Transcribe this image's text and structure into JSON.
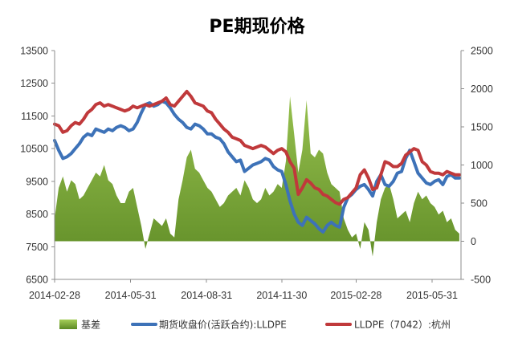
{
  "chart_data": {
    "type": "line",
    "title": "PE期现价格",
    "xlim": [
      "2014-02-28",
      "2015-07-05"
    ],
    "x_ticks": [
      "2014-02-28",
      "2014-05-31",
      "2014-08-31",
      "2014-11-30",
      "2015-02-28",
      "2015-05-31"
    ],
    "y_left": {
      "min": 6500,
      "max": 13500,
      "ticks": [
        "13500",
        "12500",
        "11500",
        "10500",
        "9500",
        "8500",
        "7500",
        "6500"
      ]
    },
    "y_right": {
      "min": -500,
      "max": 2500,
      "ticks": [
        "2500",
        "2000",
        "1500",
        "1000",
        "500",
        "0",
        "-500"
      ]
    },
    "grid": false,
    "legend": "bottom",
    "x": [
      "2014-02-28",
      "2014-03-05",
      "2014-03-10",
      "2014-03-15",
      "2014-03-20",
      "2014-03-25",
      "2014-03-30",
      "2014-04-04",
      "2014-04-09",
      "2014-04-14",
      "2014-04-19",
      "2014-04-24",
      "2014-04-29",
      "2014-05-04",
      "2014-05-09",
      "2014-05-14",
      "2014-05-19",
      "2014-05-24",
      "2014-05-29",
      "2014-06-03",
      "2014-06-08",
      "2014-06-13",
      "2014-06-18",
      "2014-06-23",
      "2014-06-28",
      "2014-07-03",
      "2014-07-08",
      "2014-07-13",
      "2014-07-18",
      "2014-07-23",
      "2014-07-28",
      "2014-08-02",
      "2014-08-07",
      "2014-08-12",
      "2014-08-17",
      "2014-08-22",
      "2014-08-27",
      "2014-09-01",
      "2014-09-06",
      "2014-09-11",
      "2014-09-16",
      "2014-09-21",
      "2014-09-26",
      "2014-10-01",
      "2014-10-06",
      "2014-10-11",
      "2014-10-16",
      "2014-10-21",
      "2014-10-26",
      "2014-10-31",
      "2014-11-05",
      "2014-11-10",
      "2014-11-15",
      "2014-11-20",
      "2014-11-25",
      "2014-11-30",
      "2014-12-05",
      "2014-12-10",
      "2014-12-15",
      "2014-12-20",
      "2014-12-25",
      "2014-12-30",
      "2015-01-04",
      "2015-01-09",
      "2015-01-14",
      "2015-01-19",
      "2015-01-24",
      "2015-01-29",
      "2015-02-03",
      "2015-02-08",
      "2015-02-13",
      "2015-02-18",
      "2015-02-23",
      "2015-02-28",
      "2015-03-05",
      "2015-03-10",
      "2015-03-15",
      "2015-03-20",
      "2015-03-25",
      "2015-03-30",
      "2015-04-04",
      "2015-04-09",
      "2015-04-14",
      "2015-04-19",
      "2015-04-24",
      "2015-04-29",
      "2015-05-04",
      "2015-05-09",
      "2015-05-14",
      "2015-05-19",
      "2015-05-24",
      "2015-05-29",
      "2015-06-03",
      "2015-06-08",
      "2015-06-13",
      "2015-06-18",
      "2015-06-23",
      "2015-06-28",
      "2015-07-03"
    ],
    "series": [
      {
        "name": "基差",
        "type": "area",
        "axis": "right",
        "color": "#7FAE34",
        "fill_gradient": [
          "#A5CE59",
          "#5C8924"
        ],
        "values": [
          300,
          700,
          850,
          650,
          800,
          750,
          550,
          600,
          700,
          800,
          900,
          850,
          1000,
          800,
          750,
          600,
          500,
          500,
          650,
          700,
          450,
          200,
          -100,
          100,
          300,
          250,
          200,
          300,
          100,
          50,
          550,
          800,
          1100,
          1200,
          950,
          900,
          800,
          700,
          650,
          550,
          450,
          500,
          600,
          650,
          700,
          600,
          800,
          700,
          550,
          500,
          550,
          700,
          600,
          650,
          750,
          700,
          1050,
          1900,
          1400,
          900,
          1200,
          1850,
          1150,
          1100,
          1200,
          1150,
          900,
          750,
          700,
          650,
          300,
          150,
          50,
          100,
          -100,
          250,
          150,
          -200,
          250,
          550,
          700,
          750,
          550,
          300,
          350,
          400,
          250,
          500,
          650,
          550,
          600,
          500,
          450,
          350,
          400,
          250,
          300,
          150,
          100
        ]
      },
      {
        "name": "期货收盘价(活跃合约):LLDPE",
        "type": "line",
        "axis": "left",
        "color": "#3D72B8",
        "values": [
          10750,
          10450,
          10200,
          10250,
          10350,
          10500,
          10650,
          10850,
          10950,
          10900,
          11100,
          11050,
          11000,
          11100,
          11050,
          11150,
          11200,
          11150,
          11050,
          11100,
          11300,
          11600,
          11850,
          11900,
          11800,
          11850,
          11950,
          11900,
          11750,
          11550,
          11400,
          11300,
          11150,
          11100,
          11250,
          11200,
          11100,
          10950,
          10950,
          10850,
          10800,
          10650,
          10400,
          10250,
          10100,
          10150,
          9800,
          9900,
          10000,
          10050,
          10100,
          10200,
          10150,
          9950,
          9850,
          9800,
          9400,
          8900,
          8500,
          8250,
          8150,
          8400,
          8300,
          8200,
          8050,
          7950,
          8150,
          8250,
          8150,
          8100,
          8700,
          9000,
          9100,
          9250,
          9350,
          9400,
          9250,
          9050,
          9500,
          9700,
          9400,
          9350,
          9500,
          9750,
          9800,
          10200,
          10450,
          10100,
          9750,
          9600,
          9450,
          9400,
          9500,
          9550,
          9400,
          9650,
          9700,
          9600,
          9600
        ]
      },
      {
        "name": "LLDPE（7042）:杭州",
        "type": "line",
        "axis": "left",
        "color": "#C0393B",
        "values": [
          11250,
          11200,
          11000,
          11050,
          11200,
          11300,
          11250,
          11400,
          11600,
          11700,
          11850,
          11900,
          11800,
          11850,
          11800,
          11750,
          11700,
          11650,
          11700,
          11800,
          11750,
          11800,
          11850,
          11800,
          11850,
          11900,
          11950,
          12050,
          11850,
          11800,
          11950,
          12100,
          12250,
          12100,
          11900,
          11850,
          11800,
          11650,
          11600,
          11400,
          11250,
          11100,
          11000,
          10850,
          10800,
          10750,
          10600,
          10550,
          10500,
          10550,
          10600,
          10550,
          10450,
          10350,
          10450,
          10500,
          10400,
          10100,
          9900,
          9100,
          9300,
          9550,
          9450,
          9300,
          9250,
          9100,
          9050,
          8950,
          8850,
          8800,
          8950,
          9000,
          9150,
          9300,
          9700,
          9850,
          9600,
          9250,
          9300,
          9700,
          10100,
          10050,
          9950,
          9950,
          10050,
          10300,
          10400,
          10500,
          10450,
          10100,
          10000,
          9800,
          9750,
          9750,
          9700,
          9800,
          9750,
          9700,
          9700
        ]
      }
    ]
  }
}
